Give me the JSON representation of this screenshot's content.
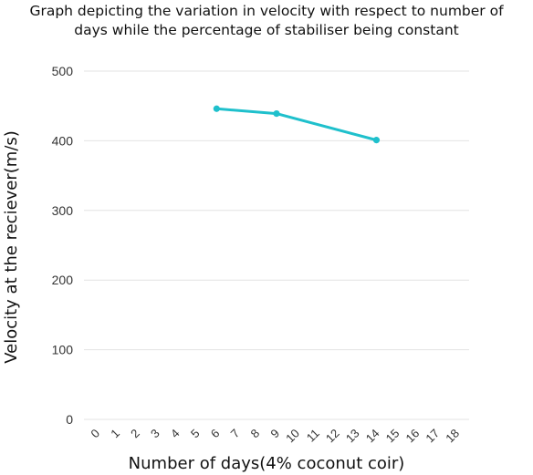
{
  "chart_data": {
    "type": "line",
    "title_lines": [
      "Graph depicting the variation in velocity with respect to number of",
      "days while the percentage of stabiliser being constant"
    ],
    "xlabel": "Number of days(4% coconut coir)",
    "ylabel": "Velocity at the reciever(m/s)",
    "categories": [
      "0",
      "1",
      "2",
      "3",
      "4",
      "5",
      "6",
      "7",
      "8",
      "9",
      "10",
      "11",
      "12",
      "13",
      "14",
      "15",
      "16",
      "17",
      "18"
    ],
    "ylim": [
      0,
      500
    ],
    "yticks": [
      "0",
      "100",
      "200",
      "300",
      "400",
      "500"
    ],
    "grid": true,
    "legend": "none",
    "series": [
      {
        "color": "#1fc0cc",
        "points": [
          {
            "x": "6",
            "y": 446
          },
          {
            "x": "9",
            "y": 439
          },
          {
            "x": "14",
            "y": 401
          }
        ]
      }
    ]
  }
}
